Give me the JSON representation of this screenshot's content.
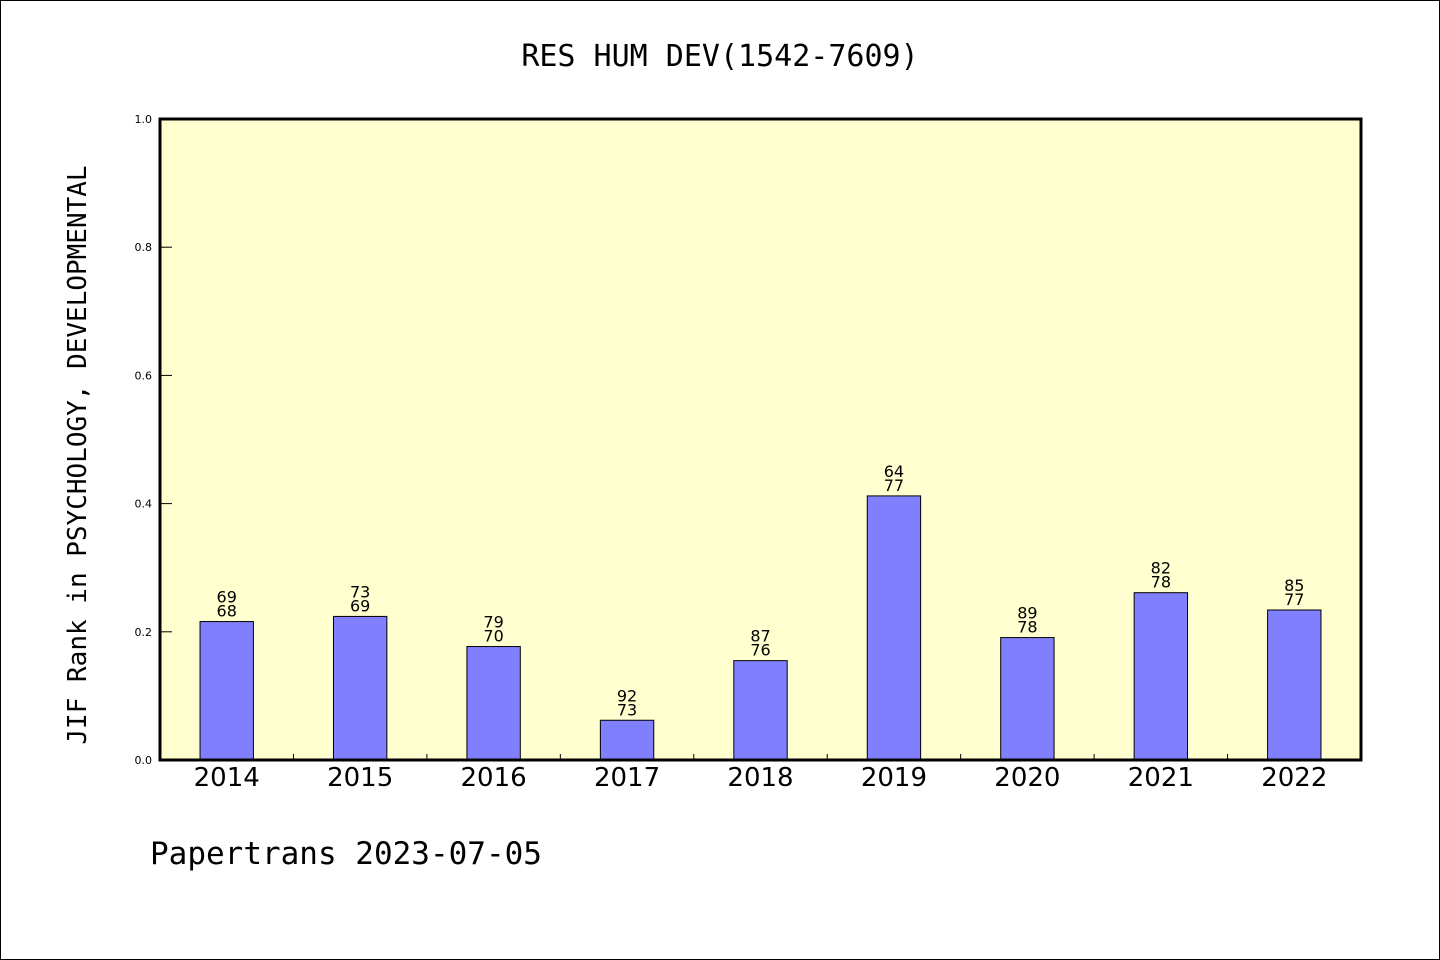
{
  "chart_data": {
    "type": "bar",
    "title": "RES HUM DEV(1542-7609)",
    "ylabel": "JIF Rank in PSYCHOLOGY, DEVELOPMENTAL",
    "xlabel": "",
    "ylim": [
      0.0,
      1.0
    ],
    "yticks": [
      "0.0",
      "0.2",
      "0.4",
      "0.6",
      "0.8",
      "1.0"
    ],
    "categories": [
      "2014",
      "2015",
      "2016",
      "2017",
      "2018",
      "2019",
      "2020",
      "2021",
      "2022"
    ],
    "values": [
      0.216,
      0.224,
      0.177,
      0.062,
      0.155,
      0.412,
      0.191,
      0.261,
      0.234
    ],
    "label_top": [
      "69",
      "73",
      "79",
      "92",
      "87",
      "64",
      "89",
      "82",
      "85"
    ],
    "label_bottom": [
      "68",
      "69",
      "70",
      "73",
      "76",
      "77",
      "78",
      "78",
      "77"
    ],
    "grid": false,
    "colors": {
      "bar": "#8080ff",
      "plot_bg": "#ffffd0"
    }
  },
  "footer": "Papertrans 2023-07-05"
}
